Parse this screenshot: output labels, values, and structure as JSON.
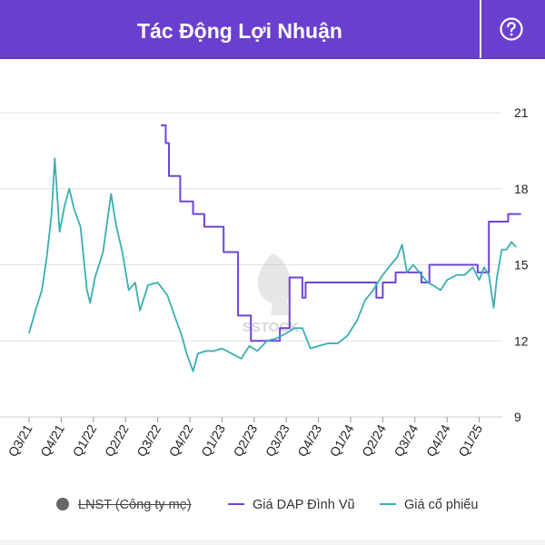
{
  "header": {
    "title": "Tác Động Lợi Nhuận",
    "help_icon": "question-circle-icon"
  },
  "colors": {
    "header_bg": "#6a3fd0",
    "dap_line": "#6d45d8",
    "stock_line": "#3aafb0",
    "lnst_dot": "#666666"
  },
  "watermark": {
    "text": "SSTOCK"
  },
  "legend": [
    {
      "label": "LNST (Công ty mẹ)",
      "marker": "dot",
      "disabled": true
    },
    {
      "label": "Giá DAP Đình Vũ",
      "marker": "line"
    },
    {
      "label": "Giá cổ phiếu",
      "marker": "line"
    }
  ],
  "chart_data": {
    "type": "line",
    "title": "Tác Động Lợi Nhuận",
    "x_categories": [
      "Q3/21",
      "Q4/21",
      "Q1/22",
      "Q2/22",
      "Q3/22",
      "Q4/22",
      "Q1/23",
      "Q2/23",
      "Q3/23",
      "Q4/23",
      "Q1/24",
      "Q2/24",
      "Q3/24",
      "Q4/24",
      "Q1/25"
    ],
    "y_axis": {
      "position": "right",
      "ticks": [
        9,
        12,
        15,
        18,
        21
      ],
      "range": [
        9,
        21
      ]
    },
    "grid": true,
    "legend_position": "bottom",
    "series": [
      {
        "name": "Giá DAP Đình Vũ",
        "step": true,
        "points": [
          [
            4.1,
            20.5
          ],
          [
            4.25,
            19.8
          ],
          [
            4.35,
            18.5
          ],
          [
            4.7,
            17.5
          ],
          [
            5.1,
            17.0
          ],
          [
            5.45,
            16.5
          ],
          [
            6.05,
            15.5
          ],
          [
            6.5,
            13.0
          ],
          [
            6.9,
            12.0
          ],
          [
            7.8,
            12.5
          ],
          [
            8.1,
            14.5
          ],
          [
            8.5,
            13.7
          ],
          [
            8.6,
            14.3
          ],
          [
            10.8,
            13.7
          ],
          [
            11.0,
            14.3
          ],
          [
            11.4,
            14.7
          ],
          [
            12.2,
            14.3
          ],
          [
            12.45,
            15.0
          ],
          [
            13.95,
            14.7
          ],
          [
            14.3,
            16.7
          ],
          [
            14.9,
            17.0
          ],
          [
            15.3,
            17.0
          ]
        ]
      },
      {
        "name": "Giá cổ phiếu",
        "points": [
          [
            0.0,
            12.3
          ],
          [
            0.2,
            13.2
          ],
          [
            0.4,
            14.0
          ],
          [
            0.55,
            15.3
          ],
          [
            0.7,
            17.0
          ],
          [
            0.8,
            19.2
          ],
          [
            0.95,
            16.3
          ],
          [
            1.1,
            17.3
          ],
          [
            1.25,
            18.0
          ],
          [
            1.4,
            17.2
          ],
          [
            1.6,
            16.5
          ],
          [
            1.8,
            14.0
          ],
          [
            1.9,
            13.5
          ],
          [
            2.05,
            14.5
          ],
          [
            2.3,
            15.5
          ],
          [
            2.55,
            17.8
          ],
          [
            2.7,
            16.6
          ],
          [
            2.9,
            15.5
          ],
          [
            3.1,
            14.0
          ],
          [
            3.3,
            14.3
          ],
          [
            3.45,
            13.2
          ],
          [
            3.7,
            14.2
          ],
          [
            4.0,
            14.3
          ],
          [
            4.3,
            13.8
          ],
          [
            4.55,
            12.9
          ],
          [
            4.75,
            12.2
          ],
          [
            4.9,
            11.5
          ],
          [
            5.1,
            10.8
          ],
          [
            5.25,
            11.5
          ],
          [
            5.5,
            11.6
          ],
          [
            5.75,
            11.6
          ],
          [
            6.0,
            11.7
          ],
          [
            6.3,
            11.5
          ],
          [
            6.6,
            11.3
          ],
          [
            6.85,
            11.8
          ],
          [
            7.1,
            11.6
          ],
          [
            7.4,
            12.0
          ],
          [
            7.7,
            12.1
          ],
          [
            8.0,
            12.3
          ],
          [
            8.25,
            12.5
          ],
          [
            8.5,
            12.5
          ],
          [
            8.75,
            11.7
          ],
          [
            9.0,
            11.8
          ],
          [
            9.3,
            11.9
          ],
          [
            9.6,
            11.9
          ],
          [
            9.9,
            12.2
          ],
          [
            10.2,
            12.8
          ],
          [
            10.45,
            13.6
          ],
          [
            10.7,
            14.0
          ],
          [
            11.0,
            14.6
          ],
          [
            11.25,
            15.0
          ],
          [
            11.45,
            15.3
          ],
          [
            11.6,
            15.8
          ],
          [
            11.75,
            14.7
          ],
          [
            11.95,
            15.0
          ],
          [
            12.2,
            14.6
          ],
          [
            12.4,
            14.3
          ],
          [
            12.55,
            14.2
          ],
          [
            12.8,
            14.0
          ],
          [
            13.0,
            14.4
          ],
          [
            13.3,
            14.6
          ],
          [
            13.55,
            14.6
          ],
          [
            13.8,
            14.9
          ],
          [
            14.0,
            14.4
          ],
          [
            14.15,
            14.9
          ],
          [
            14.3,
            14.6
          ],
          [
            14.45,
            13.3
          ],
          [
            14.55,
            14.5
          ],
          [
            14.7,
            15.6
          ],
          [
            14.85,
            15.6
          ],
          [
            15.0,
            15.9
          ],
          [
            15.15,
            15.7
          ]
        ]
      }
    ]
  }
}
